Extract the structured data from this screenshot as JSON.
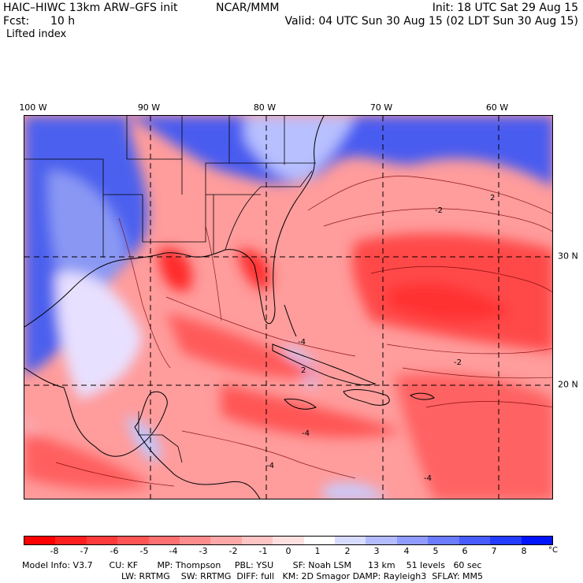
{
  "header": {
    "model_title": "HAIC–HIWC 13km ARW–GFS init",
    "center": "NCAR/MMM",
    "init_time": "Init: 18 UTC Sat 29 Aug 15",
    "fcst_label": "Fcst:",
    "fcst_value": "10 h",
    "valid_time": "Valid: 04 UTC Sun 30 Aug 15 (02 LDT Sun 30 Aug 15)",
    "field_name": "Lifted index"
  },
  "map": {
    "longitude_labels": [
      "100 W",
      "90 W",
      "80 W",
      "70 W",
      "60 W"
    ],
    "latitude_labels": [
      "30 N",
      "20 N"
    ],
    "contour_labels": [
      "2",
      "-2",
      "-4",
      "-2",
      "2",
      "-4",
      "-4",
      "-4"
    ]
  },
  "legend": {
    "ticks": [
      "-8",
      "-7",
      "-6",
      "-5",
      "-4",
      "-3",
      "-2",
      "-1",
      "0",
      "1",
      "2",
      "3",
      "4",
      "5",
      "6",
      "7",
      "8"
    ],
    "unit": "°C",
    "colors": [
      "#ff0000",
      "#ff1f1f",
      "#ff3a3a",
      "#ff5555",
      "#ff7070",
      "#ff8c8c",
      "#ffa8a8",
      "#ffc4c4",
      "#ffe0e0",
      "#ffffff",
      "#d8dcff",
      "#b4bcff",
      "#909cff",
      "#6c7cff",
      "#485cff",
      "#243cff",
      "#0014ff"
    ]
  },
  "model_info": {
    "line1": "Model Info: V3.7      CU: KF       MP: Thompson     PBL: YSU       SF: Noah LSM      13 km    51 levels   60 sec",
    "line2": "LW: RRTMG    SW: RRTMG  DIFF: full   KM: 2D Smagor DAMP: Rayleigh3  SFLAY: MM5"
  }
}
